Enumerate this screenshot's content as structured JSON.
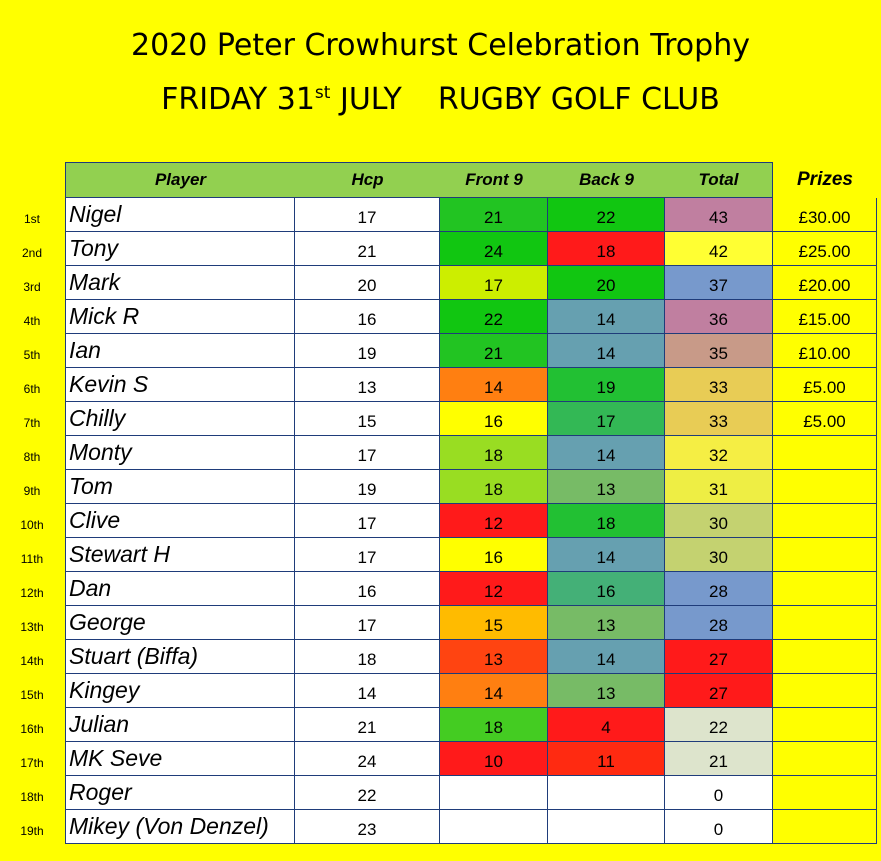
{
  "title_line1": "2020 Peter Crowhurst Celebration Trophy",
  "title_line2": {
    "day": "FRIDAY 31",
    "suffix": "st",
    "month": "JULY",
    "venue": "RUGBY GOLF CLUB"
  },
  "headers": {
    "player": "Player",
    "hcp": "Hcp",
    "front9": "Front 9",
    "back9": "Back 9",
    "total": "Total",
    "prizes": "Prizes"
  },
  "colors": {
    "background": "#ffff00",
    "header_green": "#92d050",
    "grid_line": "#1f3c7a"
  },
  "rows": [
    {
      "pos": "1st",
      "player": "Nigel",
      "hcp": "17",
      "front": "21",
      "back": "22",
      "total": "43",
      "prize": "£30.00",
      "front_color": "#22c422",
      "back_color": "#11c611",
      "total_color": "#c07fa0"
    },
    {
      "pos": "2nd",
      "player": "Tony",
      "hcp": "21",
      "front": "24",
      "back": "18",
      "total": "42",
      "prize": "£25.00",
      "front_color": "#11c611",
      "back_color": "#ff1a1a",
      "total_color": "#ffff33"
    },
    {
      "pos": "3rd",
      "player": "Mark",
      "hcp": "20",
      "front": "17",
      "back": "20",
      "total": "37",
      "prize": "£20.00",
      "front_color": "#ccee00",
      "back_color": "#11c611",
      "total_color": "#7799cc"
    },
    {
      "pos": "4th",
      "player": "Mick R",
      "hcp": "16",
      "front": "22",
      "back": "14",
      "total": "36",
      "prize": "£15.00",
      "front_color": "#11c611",
      "back_color": "#66a0b0",
      "total_color": "#c07fa0"
    },
    {
      "pos": "5th",
      "player": "Ian",
      "hcp": "19",
      "front": "21",
      "back": "14",
      "total": "35",
      "prize": "£10.00",
      "front_color": "#22c422",
      "back_color": "#66a0b0",
      "total_color": "#c89a88"
    },
    {
      "pos": "6th",
      "player": "Kevin S",
      "hcp": "13",
      "front": "14",
      "back": "19",
      "total": "33",
      "prize": "£5.00",
      "front_color": "#ff7f11",
      "back_color": "#22c033",
      "total_color": "#e8cc55"
    },
    {
      "pos": "7th",
      "player": "Chilly",
      "hcp": "15",
      "front": "16",
      "back": "17",
      "total": "33",
      "prize": "£5.00",
      "front_color": "#ffff00",
      "back_color": "#33b855",
      "total_color": "#e8cc55"
    },
    {
      "pos": "8th",
      "player": "Monty",
      "hcp": "17",
      "front": "18",
      "back": "14",
      "total": "32",
      "prize": "",
      "front_color": "#99dd22",
      "back_color": "#66a0b0",
      "total_color": "#f5ee44"
    },
    {
      "pos": "9th",
      "player": "Tom",
      "hcp": "19",
      "front": "18",
      "back": "13",
      "total": "31",
      "prize": "",
      "front_color": "#99dd22",
      "back_color": "#77bb66",
      "total_color": "#eeee44"
    },
    {
      "pos": "10th",
      "player": "Clive",
      "hcp": "17",
      "front": "12",
      "back": "18",
      "total": "30",
      "prize": "",
      "front_color": "#ff1a1a",
      "back_color": "#22c033",
      "total_color": "#c4d270"
    },
    {
      "pos": "11th",
      "player": "Stewart H",
      "hcp": "17",
      "front": "16",
      "back": "14",
      "total": "30",
      "prize": "",
      "front_color": "#ffff00",
      "back_color": "#66a0b0",
      "total_color": "#c4d270"
    },
    {
      "pos": "12th",
      "player": "Dan",
      "hcp": "16",
      "front": "12",
      "back": "16",
      "total": "28",
      "prize": "",
      "front_color": "#ff1a1a",
      "back_color": "#44b077",
      "total_color": "#7799cc"
    },
    {
      "pos": "13th",
      "player": "George",
      "hcp": "17",
      "front": "15",
      "back": "13",
      "total": "28",
      "prize": "",
      "front_color": "#ffbb00",
      "back_color": "#77bb66",
      "total_color": "#7799cc"
    },
    {
      "pos": "14th",
      "player": "Stuart (Biffa)",
      "hcp": "18",
      "front": "13",
      "back": "14",
      "total": "27",
      "prize": "",
      "front_color": "#ff4411",
      "back_color": "#66a0b0",
      "total_color": "#ff1a1a"
    },
    {
      "pos": "15th",
      "player": "Kingey",
      "hcp": "14",
      "front": "14",
      "back": "13",
      "total": "27",
      "prize": "",
      "front_color": "#ff7f11",
      "back_color": "#77bb66",
      "total_color": "#ff1a1a"
    },
    {
      "pos": "16th",
      "player": "Julian",
      "hcp": "21",
      "front": "18",
      "back": "4",
      "total": "22",
      "prize": "",
      "front_color": "#44cc22",
      "back_color": "#ff1a1a",
      "total_color": "#dde4cc"
    },
    {
      "pos": "17th",
      "player": "MK Seve",
      "hcp": "24",
      "front": "10",
      "back": "11",
      "total": "21",
      "prize": "",
      "front_color": "#ff1a1a",
      "back_color": "#ff2a11",
      "total_color": "#dde4cc"
    },
    {
      "pos": "18th",
      "player": "Roger",
      "hcp": "22",
      "front": "",
      "back": "",
      "total": "0",
      "prize": "",
      "front_color": "#ffffff",
      "back_color": "#ffffff",
      "total_color": "#ffffff"
    },
    {
      "pos": "19th",
      "player": "Mikey (Von Denzel)",
      "hcp": "23",
      "front": "",
      "back": "",
      "total": "0",
      "prize": "",
      "front_color": "#ffffff",
      "back_color": "#ffffff",
      "total_color": "#ffffff"
    }
  ]
}
